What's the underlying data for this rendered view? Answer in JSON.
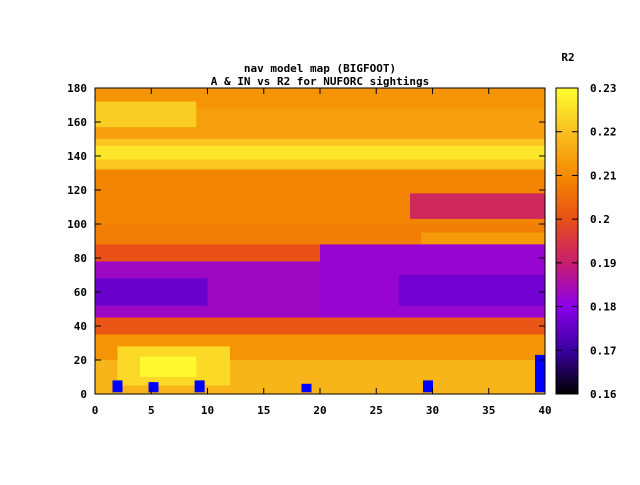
{
  "chart_data": {
    "type": "heatmap",
    "title_line1": "nav model map (BIGFOOT)",
    "title_line2": "A & IN vs R2 for NUFORC sightings",
    "xlabel": "",
    "ylabel": "",
    "xlim": [
      0,
      40
    ],
    "ylim": [
      0,
      180
    ],
    "x_ticks": [
      0,
      5,
      10,
      15,
      20,
      25,
      30,
      35,
      40
    ],
    "y_ticks": [
      0,
      20,
      40,
      60,
      80,
      100,
      120,
      140,
      160,
      180
    ],
    "colorbar": {
      "label": "R2",
      "min": 0.16,
      "max": 0.23,
      "ticks": [
        0.16,
        0.17,
        0.18,
        0.19,
        0.2,
        0.21,
        0.22,
        0.23
      ],
      "tick_labels": [
        "0.16",
        "0.17",
        "0.18",
        "0.19",
        "0.2",
        "0.21",
        "0.22",
        "0.23"
      ],
      "palette": [
        "#000000",
        "#3a00a0",
        "#8a00e8",
        "#c81e6e",
        "#e85018",
        "#f48a00",
        "#f8c020",
        "#ffff30"
      ]
    },
    "heat_bands": [
      {
        "y0": 168,
        "y1": 180,
        "x0": 0,
        "x1": 40,
        "value": 0.212
      },
      {
        "y0": 150,
        "y1": 168,
        "x0": 0,
        "x1": 40,
        "value": 0.214
      },
      {
        "y0": 157,
        "y1": 172,
        "x0": 0,
        "x1": 9,
        "value": 0.222
      },
      {
        "y0": 132,
        "y1": 150,
        "x0": 0,
        "x1": 40,
        "value": 0.221
      },
      {
        "y0": 138,
        "y1": 146,
        "x0": 0,
        "x1": 40,
        "value": 0.226
      },
      {
        "y0": 100,
        "y1": 132,
        "x0": 0,
        "x1": 40,
        "value": 0.209
      },
      {
        "y0": 103,
        "y1": 118,
        "x0": 28,
        "x1": 40,
        "value": 0.192
      },
      {
        "y0": 88,
        "y1": 100,
        "x0": 0,
        "x1": 40,
        "value": 0.208
      },
      {
        "y0": 88,
        "y1": 95,
        "x0": 29,
        "x1": 40,
        "value": 0.213
      },
      {
        "y0": 78,
        "y1": 88,
        "x0": 0,
        "x1": 40,
        "value": 0.2
      },
      {
        "y0": 45,
        "y1": 78,
        "x0": 0,
        "x1": 20,
        "value": 0.183
      },
      {
        "y0": 52,
        "y1": 68,
        "x0": 0,
        "x1": 10,
        "value": 0.176
      },
      {
        "y0": 42,
        "y1": 88,
        "x0": 20,
        "x1": 40,
        "value": 0.182
      },
      {
        "y0": 52,
        "y1": 70,
        "x0": 27,
        "x1": 40,
        "value": 0.177
      },
      {
        "y0": 35,
        "y1": 45,
        "x0": 0,
        "x1": 40,
        "value": 0.201
      },
      {
        "y0": 20,
        "y1": 35,
        "x0": 0,
        "x1": 40,
        "value": 0.212
      },
      {
        "y0": 0,
        "y1": 20,
        "x0": 0,
        "x1": 40,
        "value": 0.218
      },
      {
        "y0": 5,
        "y1": 28,
        "x0": 2,
        "x1": 12,
        "value": 0.224
      },
      {
        "y0": 10,
        "y1": 22,
        "x0": 4,
        "x1": 9,
        "value": 0.229
      }
    ],
    "markers": [
      {
        "x": 2.0,
        "y0": 1,
        "y1": 8
      },
      {
        "x": 5.2,
        "y0": 1,
        "y1": 7
      },
      {
        "x": 9.3,
        "y0": 1,
        "y1": 8
      },
      {
        "x": 18.8,
        "y0": 1,
        "y1": 6
      },
      {
        "x": 29.6,
        "y0": 1,
        "y1": 8
      },
      {
        "x": 39.6,
        "y0": 1,
        "y1": 23
      }
    ],
    "marker_color": "#0000ff",
    "grid": false,
    "legend": "colorbar-right"
  }
}
